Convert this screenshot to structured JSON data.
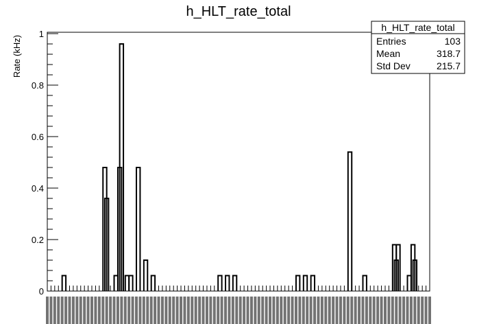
{
  "chart_data": {
    "type": "bar",
    "title": "h_HLT_rate_total",
    "xlabel": "",
    "ylabel": "Rate (kHz)",
    "ylim": [
      0,
      1.0
    ],
    "yticks": [
      0,
      0.2,
      0.4,
      0.6,
      0.8,
      1
    ],
    "ytick_labels": [
      "0",
      "0.2",
      "0.4",
      "0.6",
      "0.8",
      "1"
    ],
    "xrange": [
      0,
      103
    ],
    "grid": false,
    "legend": "none",
    "bins": [
      {
        "bin": 4,
        "value": 0.06
      },
      {
        "bin": 15,
        "value": 0.48
      },
      {
        "bin": 15.5,
        "value": 0.36
      },
      {
        "bin": 18,
        "value": 0.06
      },
      {
        "bin": 19,
        "value": 0.48
      },
      {
        "bin": 19.5,
        "value": 0.96
      },
      {
        "bin": 21,
        "value": 0.06
      },
      {
        "bin": 22,
        "value": 0.06
      },
      {
        "bin": 24,
        "value": 0.48
      },
      {
        "bin": 26,
        "value": 0.12
      },
      {
        "bin": 28,
        "value": 0.06
      },
      {
        "bin": 46,
        "value": 0.06
      },
      {
        "bin": 48,
        "value": 0.06
      },
      {
        "bin": 50,
        "value": 0.06
      },
      {
        "bin": 67,
        "value": 0.06
      },
      {
        "bin": 69,
        "value": 0.06
      },
      {
        "bin": 71,
        "value": 0.06
      },
      {
        "bin": 81,
        "value": 0.54
      },
      {
        "bin": 85,
        "value": 0.06
      },
      {
        "bin": 93,
        "value": 0.18
      },
      {
        "bin": 93.5,
        "value": 0.12
      },
      {
        "bin": 94,
        "value": 0.18
      },
      {
        "bin": 97,
        "value": 0.06
      },
      {
        "bin": 98,
        "value": 0.18
      },
      {
        "bin": 98.5,
        "value": 0.12
      }
    ]
  },
  "stats": {
    "title": "h_HLT_rate_total",
    "rows": [
      {
        "label": "Entries",
        "value": "103"
      },
      {
        "label": "Mean",
        "value": "318.7"
      },
      {
        "label": "Std Dev",
        "value": "215.7"
      }
    ]
  },
  "colors": {
    "background": "#ffffff",
    "line": "#000000"
  }
}
